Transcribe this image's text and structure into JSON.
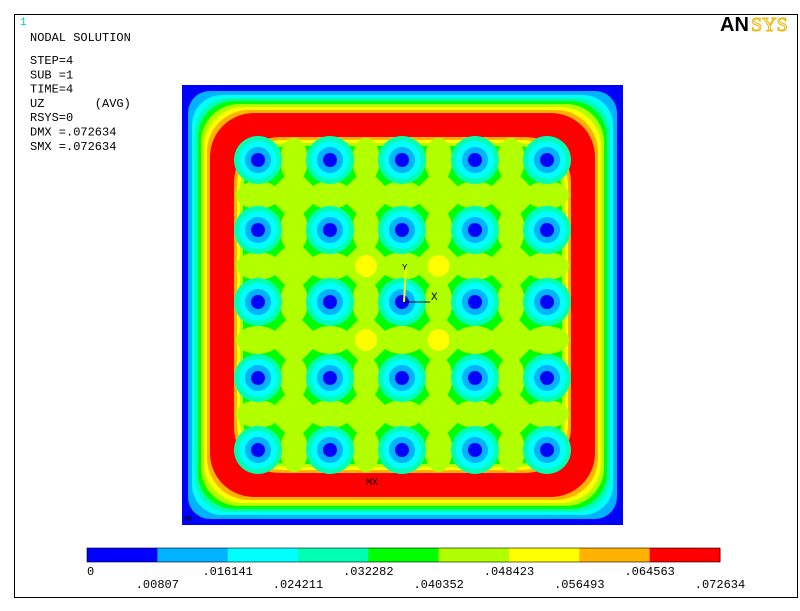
{
  "window_number": "1",
  "logo": [
    "AN",
    "SYS"
  ],
  "info": {
    "title": "NODAL SOLUTION",
    "lines": [
      "STEP=4",
      "SUB =1",
      "TIME=4",
      "UZ       (AVG)",
      "RSYS=0",
      "DMX =.072634",
      "SMX =.072634"
    ]
  },
  "plot": {
    "max_label": "MX",
    "min_label": "MN",
    "axis_x": "X",
    "axis_y": "Y"
  },
  "legend": {
    "colors": [
      "#0000ff",
      "#00b2ff",
      "#00ffff",
      "#00ffb2",
      "#00ff00",
      "#b2ff00",
      "#ffff00",
      "#ffb200",
      "#ff0000"
    ],
    "labels": [
      "0",
      ".00807",
      ".016141",
      ".024211",
      ".032282",
      ".040352",
      ".048423",
      ".056493",
      ".064563",
      ".072634"
    ]
  }
}
